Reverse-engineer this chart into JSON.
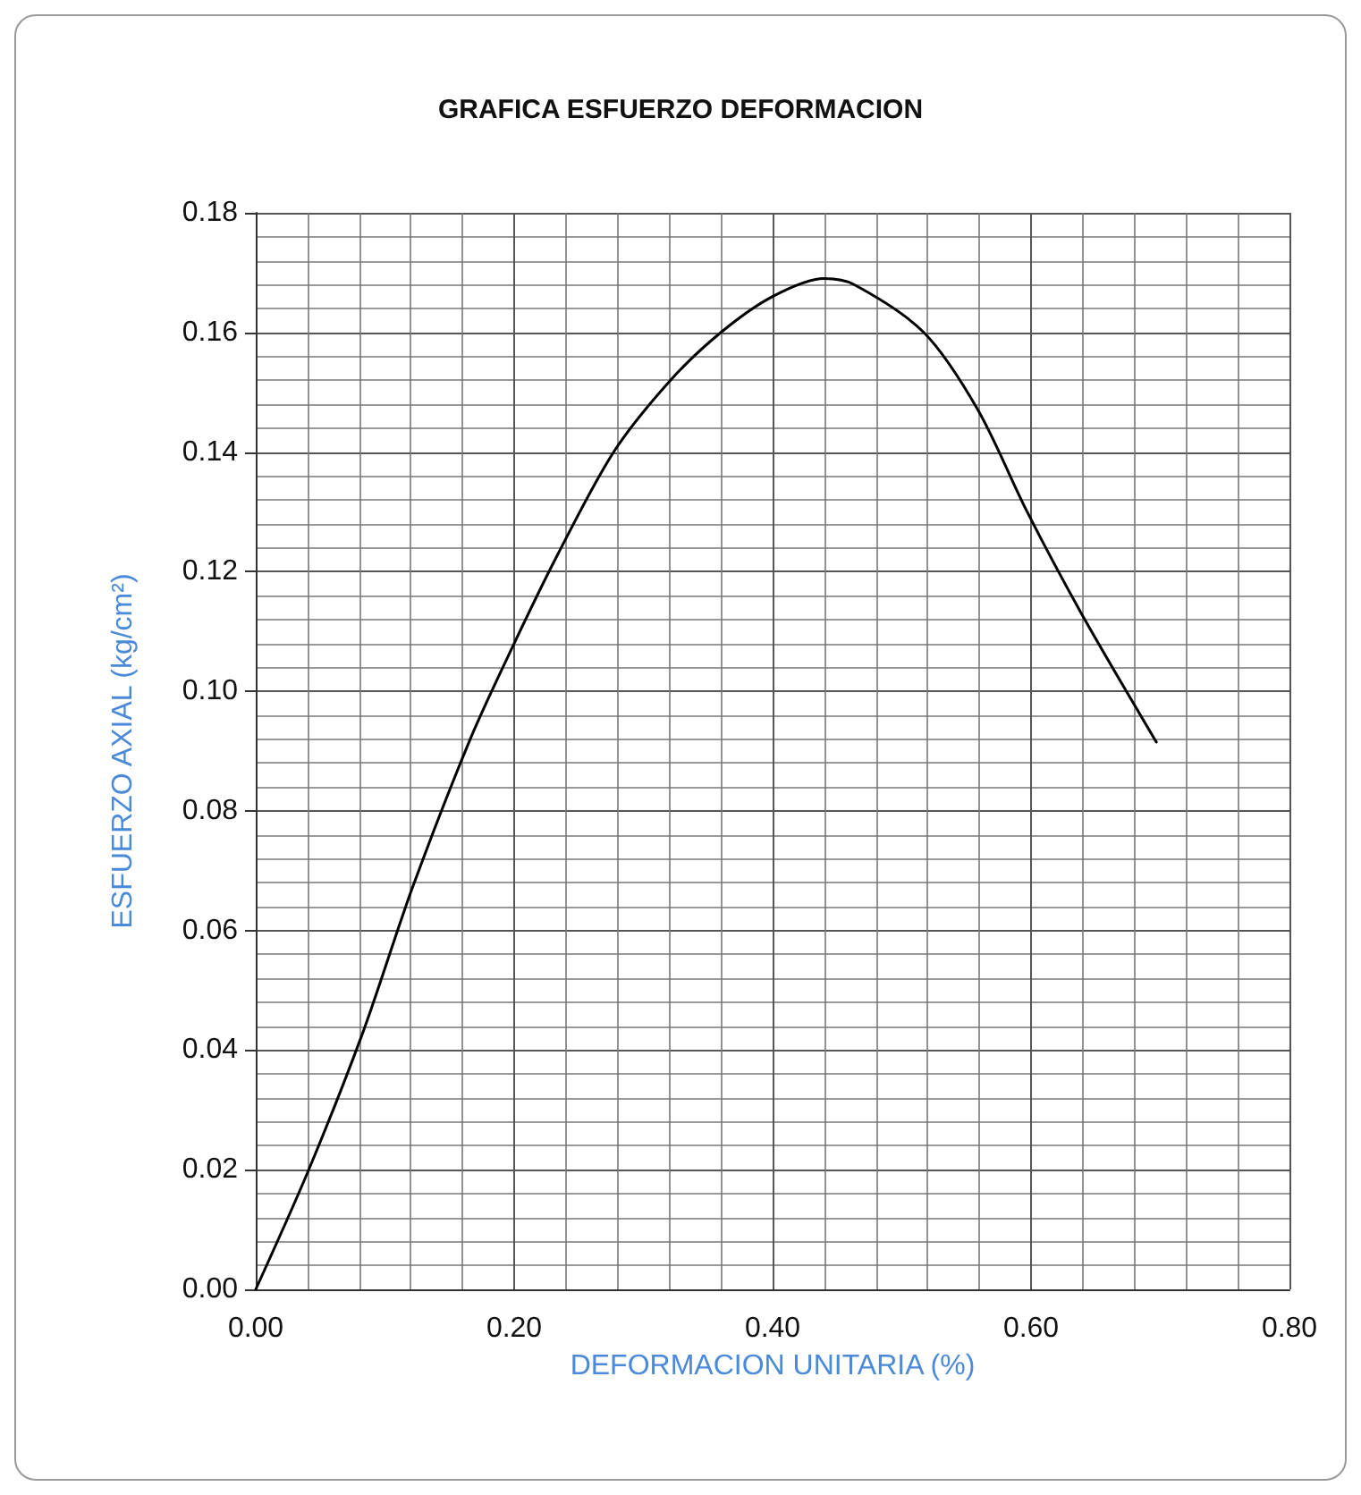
{
  "chart_data": {
    "type": "line",
    "title": "GRAFICA ESFUERZO DEFORMACION",
    "xlabel": "DEFORMACION UNITARIA (%)",
    "ylabel": "ESFUERZO AXIAL (kg/cm²)",
    "x": [
      0,
      0.041,
      0.083,
      0.121,
      0.166,
      0.2,
      0.234,
      0.277,
      0.321,
      0.36,
      0.4,
      0.44,
      0.463,
      0.517,
      0.559,
      0.597,
      0.639,
      0.697
    ],
    "series": [
      {
        "color": "#000000",
        "values": [
          0,
          0.02,
          0.043,
          0.067,
          0.092,
          0.108,
          0.123,
          0.14,
          0.152,
          0.16,
          0.166,
          0.169,
          0.168,
          0.16,
          0.147,
          0.13,
          0.113,
          0.0915
        ]
      }
    ],
    "xlim": [
      0,
      0.8
    ],
    "xticks": [
      {
        "value": 0,
        "label": "0.00"
      },
      {
        "value": 0.2,
        "label": "0.20"
      },
      {
        "value": 0.4,
        "label": "0.40"
      },
      {
        "value": 0.6,
        "label": "0.60"
      },
      {
        "value": 0.8,
        "label": "0.80"
      }
    ],
    "ylim": [
      0,
      0.18
    ],
    "yticks": [
      {
        "value": 0,
        "label": "0.00"
      },
      {
        "value": 0.02,
        "label": "0.02"
      },
      {
        "value": 0.04,
        "label": "0.04"
      },
      {
        "value": 0.06,
        "label": "0.06"
      },
      {
        "value": 0.08,
        "label": "0.08"
      },
      {
        "value": 0.1,
        "label": "0.10"
      },
      {
        "value": 0.12,
        "label": "0.12"
      },
      {
        "value": 0.14,
        "label": "0.14"
      },
      {
        "value": 0.16,
        "label": "0.16"
      },
      {
        "value": 0.18,
        "label": "0.18"
      }
    ],
    "grid": true,
    "marker": "none",
    "line_style": "solid"
  }
}
